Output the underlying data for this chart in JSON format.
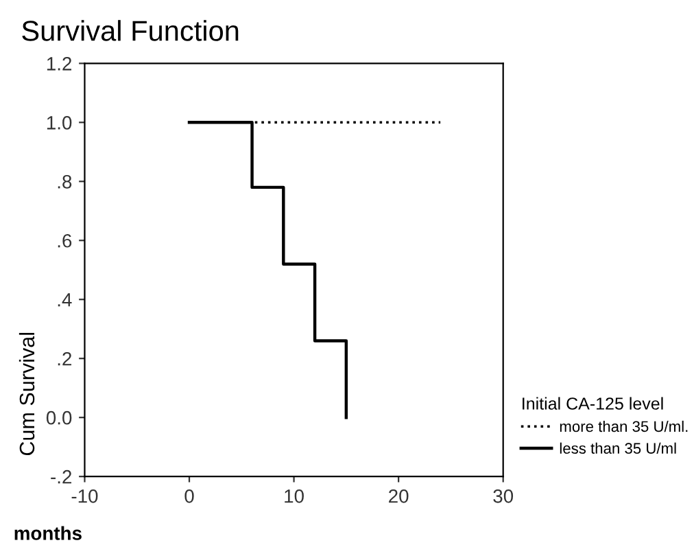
{
  "chart_data": {
    "type": "step",
    "title": "Survival Function",
    "xlabel": "months",
    "ylabel": "Cum Survival",
    "legend_title": "Initial CA-125 level",
    "legend": "right",
    "series": [
      {
        "name": "more than 35 U/ml.",
        "color": "#000000",
        "line_style": "dotted",
        "x": [
          0,
          24
        ],
        "values": [
          1.0,
          1.0
        ]
      },
      {
        "name": "less than 35 U/ml",
        "color": "#000000",
        "line_style": "solid",
        "x": [
          0,
          6,
          9,
          12,
          15
        ],
        "values": [
          1.0,
          0.78,
          0.52,
          0.26,
          0.0
        ]
      }
    ],
    "xlim": [
      -10,
      30
    ],
    "xticks": [
      -10,
      0,
      10,
      20,
      30
    ],
    "ylim": [
      -0.2,
      1.2
    ],
    "yticks": [
      {
        "value": -0.2,
        "label": "-.2"
      },
      {
        "value": 0.0,
        "label": "0.0"
      },
      {
        "value": 0.2,
        "label": ".2"
      },
      {
        "value": 0.4,
        "label": ".4"
      },
      {
        "value": 0.6,
        "label": ".6"
      },
      {
        "value": 0.8,
        "label": ".8"
      },
      {
        "value": 1.0,
        "label": "1.0"
      },
      1.2
    ],
    "grid": false
  }
}
